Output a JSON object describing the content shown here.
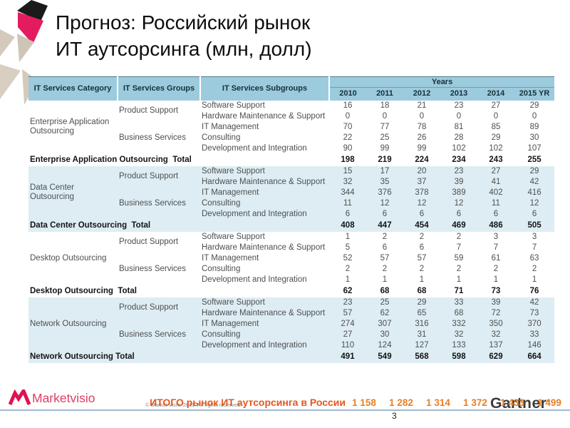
{
  "slide": {
    "title_line1": "Прогноз: Российский рынок",
    "title_line2": "ИТ аутсорсинга (млн, долл)"
  },
  "table": {
    "headers": {
      "category": "IT Services Category",
      "groups": "IT Services Groups",
      "subgroups": "IT Services Subgroups",
      "years_label": "Years",
      "years": [
        "2010",
        "2011",
        "2012",
        "2013",
        "2014",
        "2015 YR"
      ]
    },
    "categories": [
      {
        "name": "Enterprise Application Outsourcing",
        "shaded": false,
        "groups": [
          {
            "name": "Product Support",
            "rows": [
              {
                "subgroup": "Software Support",
                "values": [
                  16,
                  18,
                  21,
                  23,
                  27,
                  29
                ]
              },
              {
                "subgroup": "Hardware Maintenance & Support",
                "values": [
                  0,
                  0,
                  0,
                  0,
                  0,
                  0
                ]
              }
            ]
          },
          {
            "name": "Business Services",
            "rows": [
              {
                "subgroup": "IT Management",
                "values": [
                  70,
                  77,
                  78,
                  81,
                  85,
                  89
                ]
              },
              {
                "subgroup": "Consulting",
                "values": [
                  22,
                  25,
                  26,
                  28,
                  29,
                  30
                ]
              },
              {
                "subgroup": "Development and Integration",
                "values": [
                  90,
                  99,
                  99,
                  102,
                  102,
                  107
                ]
              }
            ]
          }
        ],
        "total_label": "Enterprise Application Outsourcing  Total",
        "totals": [
          198,
          219,
          224,
          234,
          243,
          255
        ]
      },
      {
        "name": "Data Center Outsourcing",
        "shaded": true,
        "groups": [
          {
            "name": "Product Support",
            "rows": [
              {
                "subgroup": "Software Support",
                "values": [
                  15,
                  17,
                  20,
                  23,
                  27,
                  29
                ]
              },
              {
                "subgroup": "Hardware Maintenance & Support",
                "values": [
                  32,
                  35,
                  37,
                  39,
                  41,
                  42
                ]
              }
            ]
          },
          {
            "name": "Business Services",
            "rows": [
              {
                "subgroup": "IT Management",
                "values": [
                  344,
                  376,
                  378,
                  389,
                  402,
                  416
                ]
              },
              {
                "subgroup": "Consulting",
                "values": [
                  11,
                  12,
                  12,
                  12,
                  11,
                  12
                ]
              },
              {
                "subgroup": "Development and Integration",
                "values": [
                  6,
                  6,
                  6,
                  6,
                  6,
                  6
                ]
              }
            ]
          }
        ],
        "total_label": "Data Center Outsourcing  Total",
        "totals": [
          408,
          447,
          454,
          469,
          486,
          505
        ]
      },
      {
        "name": "Desktop Outsourcing",
        "shaded": false,
        "groups": [
          {
            "name": "Product Support",
            "rows": [
              {
                "subgroup": "Software Support",
                "values": [
                  1,
                  2,
                  2,
                  2,
                  3,
                  3
                ]
              },
              {
                "subgroup": "Hardware Maintenance & Support",
                "values": [
                  5,
                  6,
                  6,
                  7,
                  7,
                  7
                ]
              }
            ]
          },
          {
            "name": "Business Services",
            "rows": [
              {
                "subgroup": "IT Management",
                "values": [
                  52,
                  57,
                  57,
                  59,
                  61,
                  63
                ]
              },
              {
                "subgroup": "Consulting",
                "values": [
                  2,
                  2,
                  2,
                  2,
                  2,
                  2
                ]
              },
              {
                "subgroup": "Development and Integration",
                "values": [
                  1,
                  1,
                  1,
                  1,
                  1,
                  1
                ]
              }
            ]
          }
        ],
        "total_label": "Desktop Outsourcing  Total",
        "totals": [
          62,
          68,
          68,
          71,
          73,
          76
        ]
      },
      {
        "name": "Network Outsourcing",
        "shaded": true,
        "groups": [
          {
            "name": "Product Support",
            "rows": [
              {
                "subgroup": "Software Support",
                "values": [
                  23,
                  25,
                  29,
                  33,
                  39,
                  42
                ]
              },
              {
                "subgroup": "Hardware Maintenance & Support",
                "values": [
                  57,
                  62,
                  65,
                  68,
                  72,
                  73
                ]
              }
            ]
          },
          {
            "name": "Business Services",
            "rows": [
              {
                "subgroup": "IT Management",
                "values": [
                  274,
                  307,
                  316,
                  332,
                  350,
                  370
                ]
              },
              {
                "subgroup": "Consulting",
                "values": [
                  27,
                  30,
                  31,
                  32,
                  32,
                  33
                ]
              },
              {
                "subgroup": "Development and Integration",
                "values": [
                  110,
                  124,
                  127,
                  133,
                  137,
                  146
                ]
              }
            ]
          }
        ],
        "total_label": "Network Outsourcing Total",
        "totals": [
          491,
          549,
          568,
          598,
          629,
          664
        ]
      }
    ],
    "grand_total": {
      "label": "ИТОГО рынок ИТ аутсорсинга в России",
      "values": [
        "1 158",
        "1 282",
        "1 314",
        "1 372",
        "1 433",
        "1 499"
      ]
    }
  },
  "footer": {
    "copyright": "© Market Visio, 2011. All rights reserved.",
    "page_number": "3",
    "marketvisio_label": "Marketvisio",
    "gartner_label": "Gartner"
  },
  "colors": {
    "header_bg": "#9ccbdd",
    "band_bg": "#ddedf3",
    "grand_total_label": "#e2581f",
    "grand_total_values": "#e87f25",
    "deco_pink": "#e31c5f",
    "deco_black": "#1b1b1b",
    "deco_beige": "#d4cabc",
    "marketvisio_pink": "#dd3e63",
    "footer_line": "#a3b8cb"
  }
}
